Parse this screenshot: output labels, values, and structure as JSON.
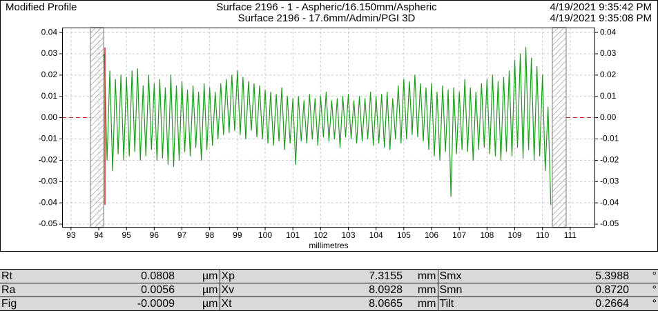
{
  "header": {
    "left": "Modified Profile",
    "center": [
      "Surface 2196 - 1 - Aspheric/16.150mm/Aspheric",
      "Surface 2196 - 17.6mm/Admin/PGI 3D"
    ],
    "right": [
      "4/19/2021 9:35:42 PM",
      "4/19/2021 9:35:08 PM"
    ]
  },
  "chart_data": {
    "type": "line",
    "xlabel": "millimetres",
    "grid": true,
    "xlim": [
      92.68,
      111.9
    ],
    "ylim": [
      -0.0516,
      0.0423
    ],
    "xticks": [
      93,
      94,
      95,
      96,
      97,
      98,
      99,
      100,
      101,
      102,
      103,
      104,
      105,
      106,
      107,
      108,
      109,
      110,
      111
    ],
    "yticks": [
      0.04,
      0.03,
      0.02,
      0.01,
      {
        "value": 0,
        "label": "0.00"
      },
      -0.01,
      -0.02,
      -0.03,
      -0.04,
      -0.05
    ],
    "series": [
      {
        "color": "#1c9c1c",
        "x": [
          94.2,
          94.3,
          94.4,
          94.5,
          94.6,
          94.7,
          94.8,
          94.9,
          95.0,
          95.1,
          95.2,
          95.3,
          95.4,
          95.5,
          95.6,
          95.7,
          95.8,
          95.9,
          96.0,
          96.1,
          96.2,
          96.3,
          96.4,
          96.5,
          96.6,
          96.7,
          96.8,
          96.9,
          97.0,
          97.1,
          97.2,
          97.3,
          97.4,
          97.5,
          97.6,
          97.7,
          97.8,
          97.9,
          98.0,
          98.1,
          98.2,
          98.3,
          98.4,
          98.5,
          98.6,
          98.7,
          98.8,
          98.9,
          99.0,
          99.1,
          99.2,
          99.3,
          99.4,
          99.5,
          99.6,
          99.7,
          99.8,
          99.9,
          100.0,
          100.1,
          100.2,
          100.3,
          100.4,
          100.5,
          100.6,
          100.7,
          100.8,
          100.9,
          101.0,
          101.1,
          101.2,
          101.3,
          101.4,
          101.5,
          101.6,
          101.7,
          101.8,
          101.9,
          102.0,
          102.1,
          102.2,
          102.3,
          102.4,
          102.5,
          102.6,
          102.7,
          102.8,
          102.9,
          103.0,
          103.1,
          103.2,
          103.3,
          103.4,
          103.5,
          103.6,
          103.7,
          103.8,
          103.9,
          104.0,
          104.1,
          104.2,
          104.3,
          104.4,
          104.5,
          104.6,
          104.7,
          104.8,
          104.9,
          105.0,
          105.1,
          105.2,
          105.3,
          105.4,
          105.5,
          105.6,
          105.7,
          105.8,
          105.9,
          106.0,
          106.1,
          106.2,
          106.3,
          106.4,
          106.5,
          106.6,
          106.7,
          106.8,
          106.9,
          107.0,
          107.1,
          107.2,
          107.3,
          107.4,
          107.5,
          107.6,
          107.7,
          107.8,
          107.9,
          108.0,
          108.1,
          108.2,
          108.3,
          108.4,
          108.5,
          108.6,
          108.7,
          108.8,
          108.9,
          109.0,
          109.1,
          109.2,
          109.3,
          109.4,
          109.5,
          109.6,
          109.7,
          109.8,
          109.9,
          110.0,
          110.1,
          110.2,
          110.3
        ],
        "values": [
          0.03,
          -0.02,
          0.022,
          -0.025,
          0.018,
          -0.017,
          0.02,
          -0.02,
          0.019,
          -0.018,
          0.022,
          -0.016,
          0.023,
          -0.02,
          0.015,
          -0.018,
          0.02,
          -0.015,
          0.016,
          -0.02,
          0.018,
          -0.019,
          0.014,
          -0.022,
          0.02,
          -0.023,
          0.015,
          -0.02,
          0.017,
          -0.016,
          0.013,
          -0.018,
          0.015,
          -0.014,
          0.012,
          -0.02,
          0.016,
          -0.015,
          0.014,
          -0.013,
          0.012,
          -0.01,
          0.016,
          -0.008,
          0.018,
          -0.007,
          0.02,
          -0.006,
          0.022,
          -0.008,
          0.019,
          -0.01,
          0.017,
          -0.006,
          0.016,
          -0.009,
          0.015,
          -0.01,
          0.013,
          -0.012,
          0.012,
          -0.013,
          0.011,
          -0.011,
          0.014,
          -0.015,
          0.01,
          -0.012,
          0.009,
          -0.022,
          0.01,
          -0.011,
          0.008,
          -0.012,
          0.011,
          -0.01,
          0.009,
          -0.013,
          0.01,
          -0.009,
          0.012,
          -0.011,
          0.008,
          -0.01,
          0.009,
          -0.014,
          0.01,
          -0.009,
          0.011,
          -0.01,
          0.008,
          -0.012,
          0.01,
          -0.011,
          0.009,
          -0.01,
          0.012,
          -0.013,
          0.01,
          -0.012,
          0.011,
          -0.014,
          0.012,
          -0.015,
          0.009,
          -0.01,
          0.015,
          -0.012,
          0.018,
          -0.01,
          0.017,
          -0.008,
          0.02,
          -0.009,
          0.016,
          -0.011,
          0.014,
          -0.015,
          0.016,
          -0.018,
          0.012,
          -0.02,
          0.015,
          -0.016,
          0.013,
          -0.037,
          0.014,
          -0.017,
          0.012,
          -0.015,
          0.018,
          -0.016,
          0.014,
          -0.02,
          0.012,
          -0.015,
          0.016,
          -0.014,
          0.018,
          -0.017,
          0.02,
          -0.018,
          0.017,
          -0.02,
          0.019,
          -0.016,
          0.022,
          -0.018,
          0.027,
          -0.014,
          0.03,
          -0.019,
          0.033,
          -0.015,
          0.028,
          -0.02,
          0.024,
          -0.018,
          0.02,
          -0.025,
          0.005,
          -0.041
        ]
      }
    ]
  },
  "table": {
    "rows": [
      [
        "Rt",
        "0.0808",
        "µm",
        "Xp",
        "7.3155",
        "mm",
        "Smx",
        "5.3988",
        "°"
      ],
      [
        "Ra",
        "0.0056",
        "µm",
        "Xv",
        "8.0928",
        "mm",
        "Smn",
        "0.8720",
        "°"
      ],
      [
        "Fig",
        "-0.0009",
        "µm",
        "Xt",
        "8.0665",
        "mm",
        "Tilt",
        "0.2664",
        "°"
      ]
    ]
  }
}
